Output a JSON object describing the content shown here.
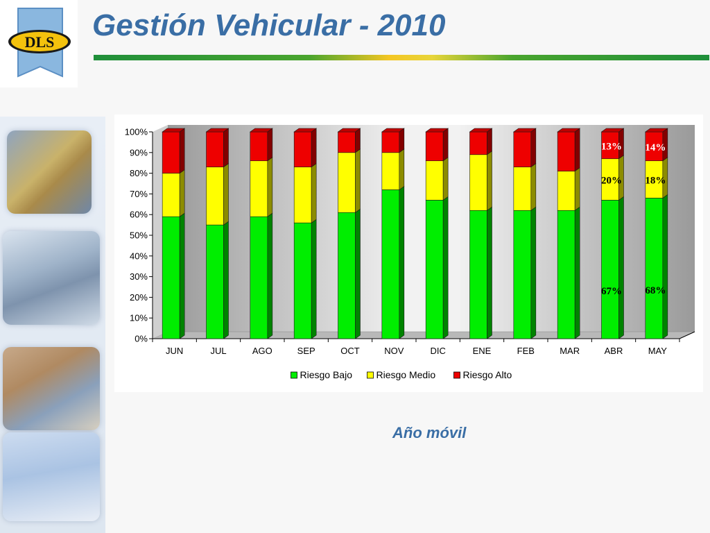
{
  "header": {
    "title": "Gestión Vehicular - 2010",
    "logo_text": "DLS",
    "accent_color": "#3a6ea5"
  },
  "subtitle": "Año móvil",
  "chart_data": {
    "type": "bar",
    "stacked": true,
    "percent": true,
    "categories": [
      "JUN",
      "JUL",
      "AGO",
      "SEP",
      "OCT",
      "NOV",
      "DIC",
      "ENE",
      "FEB",
      "MAR",
      "ABR",
      "MAY"
    ],
    "series": [
      {
        "name": "Riesgo Bajo",
        "color": "#00ee00",
        "values": [
          59,
          55,
          59,
          56,
          61,
          72,
          67,
          62,
          62,
          62,
          67,
          68
        ]
      },
      {
        "name": "Riesgo Medio",
        "color": "#ffff00",
        "values": [
          21,
          28,
          27,
          27,
          29,
          18,
          19,
          27,
          21,
          19,
          20,
          18
        ]
      },
      {
        "name": "Riesgo Alto",
        "color": "#ee0000",
        "values": [
          20,
          17,
          14,
          17,
          10,
          10,
          14,
          11,
          17,
          19,
          13,
          14
        ]
      }
    ],
    "yticks": [
      "0%",
      "10%",
      "20%",
      "30%",
      "40%",
      "50%",
      "60%",
      "70%",
      "80%",
      "90%",
      "100%"
    ],
    "ylim": [
      0,
      100
    ],
    "data_labels": [
      {
        "category": "ABR",
        "series": "Riesgo Bajo",
        "text": "67%"
      },
      {
        "category": "ABR",
        "series": "Riesgo Medio",
        "text": "20%"
      },
      {
        "category": "ABR",
        "series": "Riesgo Alto",
        "text": "13%"
      },
      {
        "category": "MAY",
        "series": "Riesgo Bajo",
        "text": "68%"
      },
      {
        "category": "MAY",
        "series": "Riesgo Medio",
        "text": "18%"
      },
      {
        "category": "MAY",
        "series": "Riesgo Alto",
        "text": "14%"
      }
    ],
    "legend_position": "bottom",
    "grid": false
  }
}
